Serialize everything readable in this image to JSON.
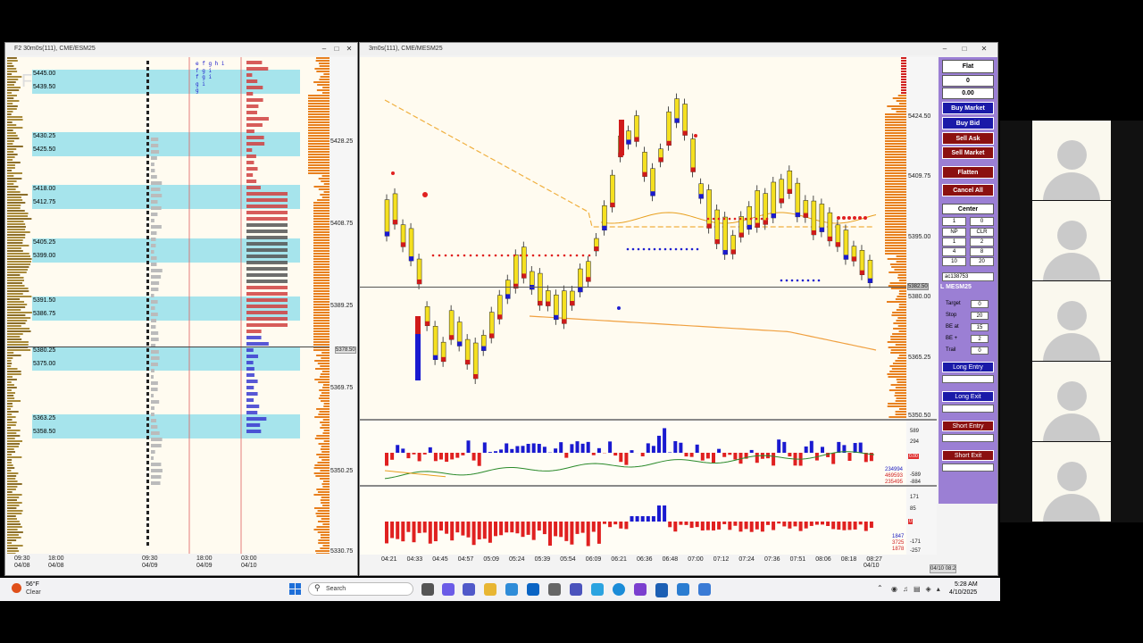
{
  "left_window": {
    "title": "F2 30m0s(111), CME/ESM25",
    "watermark": "F",
    "price_labels": [
      "5428.25",
      "5408.75",
      "5389.25",
      "5369.75",
      "5350.25",
      "5330.75"
    ],
    "current_price": "5378.50",
    "bands": [
      {
        "hi": "5445.00",
        "lo": "5439.50"
      },
      {
        "hi": "5430.25",
        "lo": "5425.50"
      },
      {
        "hi": "5418.00",
        "lo": "5412.75"
      },
      {
        "hi": "5405.25",
        "lo": "5399.00"
      },
      {
        "hi": "5391.50",
        "lo": "5386.75"
      },
      {
        "hi": "5380.25",
        "lo": "5375.00"
      },
      {
        "hi": "5363.25",
        "lo": "5358.50"
      }
    ],
    "time_labels": [
      {
        "t": "09:30",
        "d": "04/08"
      },
      {
        "t": "18:00",
        "d": "04/08"
      },
      {
        "t": "09:30",
        "d": "04/09"
      },
      {
        "t": "18:00",
        "d": "04/09"
      },
      {
        "t": "03:00",
        "d": "04/10"
      }
    ],
    "tpo_blue_rows": [
      "e f g h i",
      "f g i",
      "f g i",
      "g i",
      "g"
    ]
  },
  "right_window": {
    "title": "3m0s(111), CME/MESM25",
    "price_labels": [
      "5424.50",
      "5409.75",
      "5395.00",
      "5380.00",
      "5365.25",
      "5350.50"
    ],
    "current_price": "5382.50",
    "time_labels": [
      "04:21",
      "04:33",
      "04:45",
      "04:57",
      "05:09",
      "05:24",
      "05:39",
      "05:54",
      "06:09",
      "06:21",
      "06:36",
      "06:48",
      "07:00",
      "07:12",
      "07:24",
      "07:36",
      "07:51",
      "08:06",
      "08:18",
      "08:27"
    ],
    "last_date": "04/10",
    "date_stamp": "04/10 08:2",
    "delta_axis": [
      "589",
      "294",
      "0",
      "-294",
      "-589",
      "-884"
    ],
    "delta_values": [
      "234994",
      "469593",
      "235495"
    ],
    "delta_badge": "0.00",
    "vol_axis": [
      "171",
      "85",
      "0",
      "-85",
      "-171",
      "-257"
    ],
    "vol_values": [
      "1847",
      "3725",
      "1878"
    ]
  },
  "order_panel": {
    "position": "Flat",
    "qty": "0",
    "pnl": "0.00",
    "buy_market": "Buy Market",
    "buy_bid": "Buy Bid",
    "sell_ask": "Sell Ask",
    "sell_market": "Sell Market",
    "flatten": "Flatten",
    "cancel_all": "Cancel All",
    "center": "Center",
    "qty_input": "1",
    "qty_zero": "0",
    "grid": [
      "NP",
      "CLR",
      "1",
      "2",
      "4",
      "8",
      "10",
      "20"
    ],
    "account": "ac138753",
    "symbol": "L MESM25",
    "settings": [
      {
        "label": "Target",
        "value": "0"
      },
      {
        "label": "Stop",
        "value": "20"
      },
      {
        "label": "BE at",
        "value": "15"
      },
      {
        "label": "BE +",
        "value": "2"
      },
      {
        "label": "Trail",
        "value": "0"
      }
    ],
    "long_entry": "Long Entry",
    "long_exit": "Long Exit",
    "short_entry": "Short Entry",
    "short_exit": "Short Exit",
    "colors": {
      "blue": "#1a1aa8",
      "red": "#8b1010",
      "panel": "#9b7fd4"
    }
  },
  "taskbar": {
    "temp": "56°F",
    "cond": "Clear",
    "search": "Search",
    "time": "5:28 AM",
    "date": "4/10/2025"
  }
}
